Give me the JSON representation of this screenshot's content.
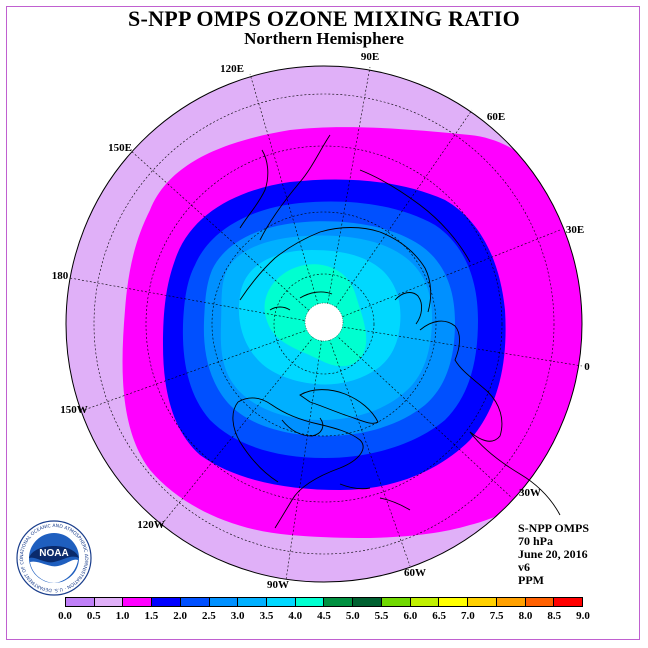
{
  "title": "S-NPP OMPS OZONE MIXING RATIO",
  "subtitle": "Northern Hemisphere",
  "longitude_labels": [
    "90E",
    "60E",
    "30E",
    "0",
    "30W",
    "60W",
    "90W",
    "120W",
    "150W",
    "180",
    "150E",
    "120E"
  ],
  "info": {
    "instrument": "S-NPP OMPS",
    "pressure": "70 hPa",
    "date": "June 20, 2016",
    "version": "v6",
    "units": "PPM"
  },
  "logo": {
    "text": "NOAA",
    "ring_text": "NATIONAL OCEANIC AND ATMOSPHERIC ADMINISTRATION · U.S. DEPARTMENT OF COMMERCE"
  },
  "colorbar": {
    "labels": [
      "0.0",
      "0.5",
      "1.0",
      "1.5",
      "2.0",
      "2.5",
      "3.0",
      "3.5",
      "4.0",
      "4.5",
      "5.0",
      "5.5",
      "6.0",
      "6.5",
      "7.0",
      "7.5",
      "8.0",
      "8.5",
      "9.0"
    ],
    "colors": [
      "#c080f8",
      "#e0b0f8",
      "#ff00ff",
      "#0000ff",
      "#0050ff",
      "#0090ff",
      "#00b0ff",
      "#00d8ff",
      "#00ffd0",
      "#009040",
      "#006030",
      "#70d800",
      "#c0f000",
      "#ffff00",
      "#ffd000",
      "#ffa000",
      "#ff6000",
      "#ff0000",
      "#905030"
    ]
  },
  "map": {
    "outer_ring_color": "#e0b0f8",
    "band_1_color": "#ff00ff",
    "band_2_color": "#0000ff",
    "band_3_color": "#0050ff",
    "band_4_color": "#0090ff",
    "band_5_color": "#00b0ff",
    "band_6_color": "#00d8ff",
    "band_7_color": "#00ffd0",
    "pole_color": "#ffffff"
  }
}
